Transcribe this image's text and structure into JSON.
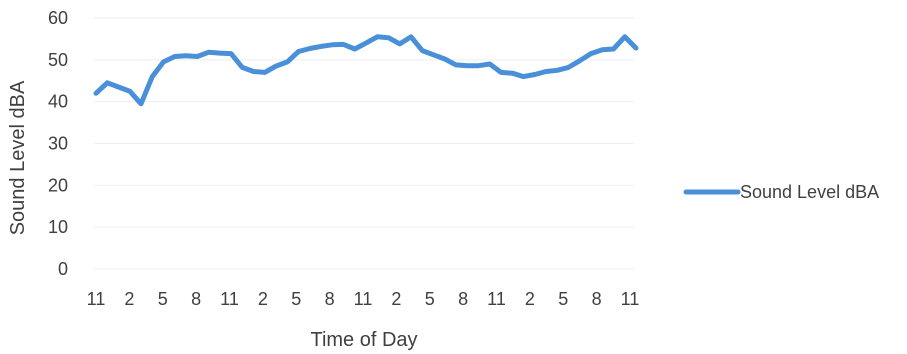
{
  "chart_data": {
    "type": "line",
    "title": "",
    "xlabel": "Time of Day",
    "ylabel": "Sound Level dBA",
    "ylim": [
      0,
      60
    ],
    "y_ticks": [
      0,
      10,
      20,
      30,
      40,
      50,
      60
    ],
    "x_tick_labels": [
      "11",
      "2",
      "5",
      "8",
      "11",
      "2",
      "5",
      "8",
      "11",
      "2",
      "5",
      "8",
      "11",
      "2",
      "5",
      "8",
      "11"
    ],
    "grid": true,
    "legend_position": "right",
    "series": [
      {
        "name": "Sound Level dBA",
        "color": "#4a90d9",
        "values": [
          42,
          44.5,
          43.5,
          42.5,
          39.5,
          46,
          49.5,
          50.8,
          51,
          50.8,
          51.8,
          51.6,
          51.5,
          48.2,
          47.2,
          47,
          48.5,
          49.5,
          52,
          52.7,
          53.2,
          53.6,
          53.7,
          52.6,
          54,
          55.5,
          55.3,
          53.8,
          55.5,
          52.2,
          51.2,
          50.2,
          48.8,
          48.6,
          48.6,
          49,
          47,
          46.8,
          46,
          46.5,
          47.2,
          47.5,
          48.2,
          49.8,
          51.5,
          52.4,
          52.6,
          55.5,
          52.8
        ]
      }
    ]
  }
}
